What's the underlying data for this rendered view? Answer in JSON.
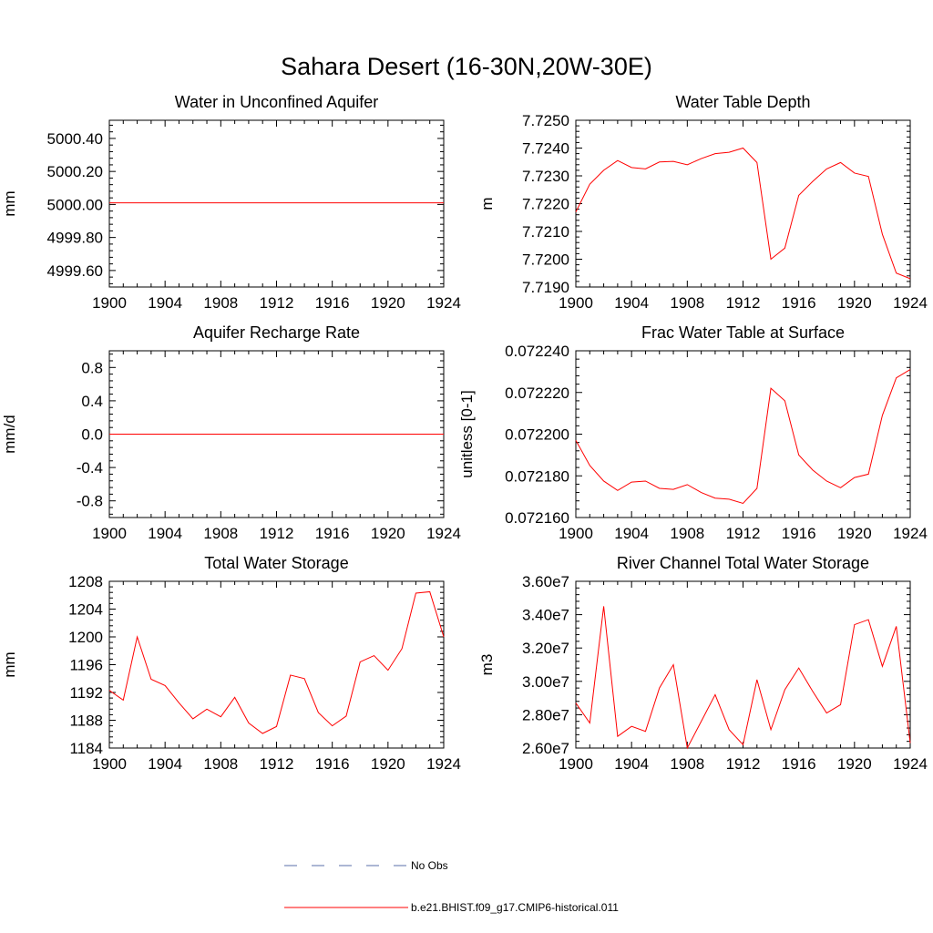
{
  "figure": {
    "title": "Sahara Desert (16-30N,20W-30E)"
  },
  "legend": {
    "entries": [
      {
        "label": "No Obs",
        "color": "#5a6fa8",
        "dash": true
      },
      {
        "label": "b.e21.BHIST.f09_g17.CMIP6-historical.011",
        "color": "#ff0000",
        "dash": false
      }
    ]
  },
  "colors": {
    "series": "#ff0000",
    "axis": "#000000"
  },
  "chart_data": [
    {
      "type": "line",
      "title": "Water in Unconfined Aquifer",
      "xlabel": "",
      "ylabel": "mm",
      "xlim": [
        1900,
        1924
      ],
      "ylim": [
        4999.5,
        5000.51
      ],
      "xticks": [
        1900,
        1904,
        1908,
        1912,
        1916,
        1920,
        1924
      ],
      "xtick_labels": [
        "1900",
        "1904",
        "1908",
        "1912",
        "1916",
        "1920",
        "1924"
      ],
      "yticks": [
        4999.6,
        4999.8,
        5000.0,
        5000.2,
        5000.4
      ],
      "ytick_labels": [
        "4999.60",
        "4999.80",
        "5000.00",
        "5000.20",
        "5000.40"
      ],
      "series": [
        {
          "x": [
            1900,
            1924
          ],
          "values": [
            5000.01,
            5000.01
          ]
        }
      ]
    },
    {
      "type": "line",
      "title": "Water Table Depth",
      "xlabel": "",
      "ylabel": "m",
      "xlim": [
        1900,
        1924
      ],
      "ylim": [
        7.719,
        7.725
      ],
      "xticks": [
        1900,
        1904,
        1908,
        1912,
        1916,
        1920,
        1924
      ],
      "xtick_labels": [
        "1900",
        "1904",
        "1908",
        "1912",
        "1916",
        "1920",
        "1924"
      ],
      "yticks": [
        7.719,
        7.72,
        7.721,
        7.722,
        7.723,
        7.724,
        7.725
      ],
      "ytick_labels": [
        "7.7190",
        "7.7200",
        "7.7210",
        "7.7220",
        "7.7230",
        "7.7240",
        "7.7250"
      ],
      "series": [
        {
          "x": [
            1900,
            1901,
            1902,
            1903,
            1904,
            1905,
            1906,
            1907,
            1908,
            1909,
            1910,
            1911,
            1912,
            1913,
            1914,
            1915,
            1916,
            1917,
            1918,
            1919,
            1920,
            1921,
            1922,
            1923,
            1924
          ],
          "values": [
            7.7217,
            7.7227,
            7.7232,
            7.72355,
            7.7233,
            7.72325,
            7.7235,
            7.72352,
            7.7234,
            7.72362,
            7.7238,
            7.72385,
            7.724,
            7.72348,
            7.72,
            7.7204,
            7.7223,
            7.7228,
            7.72325,
            7.72348,
            7.7231,
            7.72298,
            7.7209,
            7.7195,
            7.7193
          ]
        }
      ]
    },
    {
      "type": "line",
      "title": "Aquifer Recharge Rate",
      "xlabel": "",
      "ylabel": "mm/d",
      "xlim": [
        1900,
        1924
      ],
      "ylim": [
        -1.0,
        1.0
      ],
      "xticks": [
        1900,
        1904,
        1908,
        1912,
        1916,
        1920,
        1924
      ],
      "xtick_labels": [
        "1900",
        "1904",
        "1908",
        "1912",
        "1916",
        "1920",
        "1924"
      ],
      "yticks": [
        -0.8,
        -0.4,
        0.0,
        0.4,
        0.8
      ],
      "ytick_labels": [
        "-0.8",
        "-0.4",
        "0.0",
        "0.4",
        "0.8"
      ],
      "series": [
        {
          "x": [
            1900,
            1924
          ],
          "values": [
            0.0,
            0.0
          ]
        }
      ]
    },
    {
      "type": "line",
      "title": "Frac Water Table at Surface",
      "xlabel": "",
      "ylabel": "unitless [0-1]",
      "xlim": [
        1900,
        1924
      ],
      "ylim": [
        0.07216,
        0.07224
      ],
      "xticks": [
        1900,
        1904,
        1908,
        1912,
        1916,
        1920,
        1924
      ],
      "xtick_labels": [
        "1900",
        "1904",
        "1908",
        "1912",
        "1916",
        "1920",
        "1924"
      ],
      "yticks": [
        0.07216,
        0.07218,
        0.0722,
        0.07222,
        0.07224
      ],
      "ytick_labels": [
        "0.072160",
        "0.072180",
        "0.072200",
        "0.072220",
        "0.072240"
      ],
      "series": [
        {
          "x": [
            1900,
            1901,
            1902,
            1903,
            1904,
            1905,
            1906,
            1907,
            1908,
            1909,
            1910,
            1911,
            1912,
            1913,
            1914,
            1915,
            1916,
            1917,
            1918,
            1919,
            1920,
            1921,
            1922,
            1923,
            1924
          ],
          "values": [
            0.072197,
            0.072185,
            0.0721775,
            0.072173,
            0.072177,
            0.0721775,
            0.072174,
            0.0721735,
            0.0721758,
            0.072172,
            0.0721693,
            0.0721688,
            0.0721668,
            0.072174,
            0.072222,
            0.072216,
            0.07219,
            0.0721828,
            0.0721775,
            0.0721743,
            0.0721792,
            0.0721808,
            0.072209,
            0.072227,
            0.072231
          ]
        }
      ]
    },
    {
      "type": "line",
      "title": "Total Water Storage",
      "xlabel": "",
      "ylabel": "mm",
      "xlim": [
        1900,
        1924
      ],
      "ylim": [
        1184,
        1208
      ],
      "xticks": [
        1900,
        1904,
        1908,
        1912,
        1916,
        1920,
        1924
      ],
      "xtick_labels": [
        "1900",
        "1904",
        "1908",
        "1912",
        "1916",
        "1920",
        "1924"
      ],
      "yticks": [
        1184,
        1188,
        1192,
        1196,
        1200,
        1204,
        1208
      ],
      "ytick_labels": [
        "1184",
        "1188",
        "1192",
        "1196",
        "1200",
        "1204",
        "1208"
      ],
      "series": [
        {
          "x": [
            1900,
            1901,
            1902,
            1903,
            1904,
            1905,
            1906,
            1907,
            1908,
            1909,
            1910,
            1911,
            1912,
            1913,
            1914,
            1915,
            1916,
            1917,
            1918,
            1919,
            1920,
            1921,
            1922,
            1923,
            1924
          ],
          "values": [
            1192.3,
            1190.9,
            1200.0,
            1193.9,
            1193.0,
            1190.5,
            1188.2,
            1189.6,
            1188.5,
            1191.3,
            1187.6,
            1186.1,
            1187.1,
            1194.5,
            1194.0,
            1189.1,
            1187.2,
            1188.6,
            1196.4,
            1197.3,
            1195.2,
            1198.3,
            1206.3,
            1206.5,
            1200.0
          ]
        }
      ]
    },
    {
      "type": "line",
      "title": "River Channel Total Water Storage",
      "xlabel": "",
      "ylabel": "m3",
      "xlim": [
        1900,
        1924
      ],
      "ylim": [
        26000000,
        36000000
      ],
      "xticks": [
        1900,
        1904,
        1908,
        1912,
        1916,
        1920,
        1924
      ],
      "xtick_labels": [
        "1900",
        "1904",
        "1908",
        "1912",
        "1916",
        "1920",
        "1924"
      ],
      "yticks": [
        26000000,
        28000000,
        30000000,
        32000000,
        34000000,
        36000000
      ],
      "ytick_labels": [
        "2.60e7",
        "2.80e7",
        "3.00e7",
        "3.20e7",
        "3.40e7",
        "3.60e7"
      ],
      "series": [
        {
          "x": [
            1900,
            1901,
            1902,
            1903,
            1904,
            1905,
            1906,
            1907,
            1908,
            1909,
            1910,
            1911,
            1912,
            1913,
            1914,
            1915,
            1916,
            1917,
            1918,
            1919,
            1920,
            1921,
            1922,
            1923,
            1924
          ],
          "values": [
            28700000,
            27500000,
            34500000,
            26700000,
            27300000,
            27000000,
            29600000,
            31000000,
            26000000,
            27600000,
            29200000,
            27100000,
            26200000,
            30100000,
            27100000,
            29500000,
            30800000,
            29400000,
            28100000,
            28600000,
            33400000,
            33700000,
            30900000,
            33300000,
            26300000
          ]
        }
      ]
    }
  ]
}
